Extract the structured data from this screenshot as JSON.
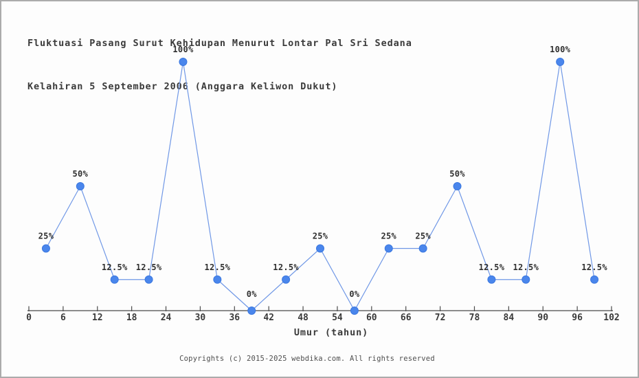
{
  "page": {
    "background": "#fdfdfd",
    "border_color": "#ababab"
  },
  "chart_data": {
    "type": "line",
    "title_lines": [
      "Fluktuasi Pasang Surut Kehidupan Menurut Lontar Pal Sri Sedana",
      "Kelahiran 5 September 2006 (Anggara Keliwon Dukut)"
    ],
    "xlabel": "Umur (tahun)",
    "ylabel": "",
    "x": [
      3,
      9,
      15,
      21,
      27,
      33,
      39,
      45,
      51,
      57,
      63,
      69,
      75,
      81,
      87,
      93,
      99
    ],
    "values": [
      25,
      50,
      12.5,
      12.5,
      100,
      12.5,
      0,
      12.5,
      25,
      0,
      25,
      25,
      50,
      12.5,
      12.5,
      100,
      12.5
    ],
    "point_labels": [
      "25%",
      "50%",
      "12.5%",
      "12.5%",
      "100%",
      "12.5%",
      "0%",
      "12.5%",
      "25%",
      "0%",
      "25%",
      "25%",
      "50%",
      "12.5%",
      "12.5%",
      "100%",
      "12.5%"
    ],
    "x_ticks": [
      0,
      6,
      12,
      18,
      24,
      30,
      36,
      42,
      48,
      54,
      60,
      66,
      72,
      78,
      84,
      90,
      96,
      102
    ],
    "xlim": [
      0,
      102
    ],
    "ylim": [
      0,
      100
    ],
    "grid": false,
    "legend": null,
    "colors": {
      "line": "#6f97e6",
      "marker_fill": "#4a86ec",
      "marker_stroke": "#3b78e0",
      "axis": "#4a4a4a",
      "text": "#3a3a3a"
    }
  },
  "footer": {
    "copyright": "Copyrights (c) 2015-2025 webdika.com. All rights reserved"
  }
}
